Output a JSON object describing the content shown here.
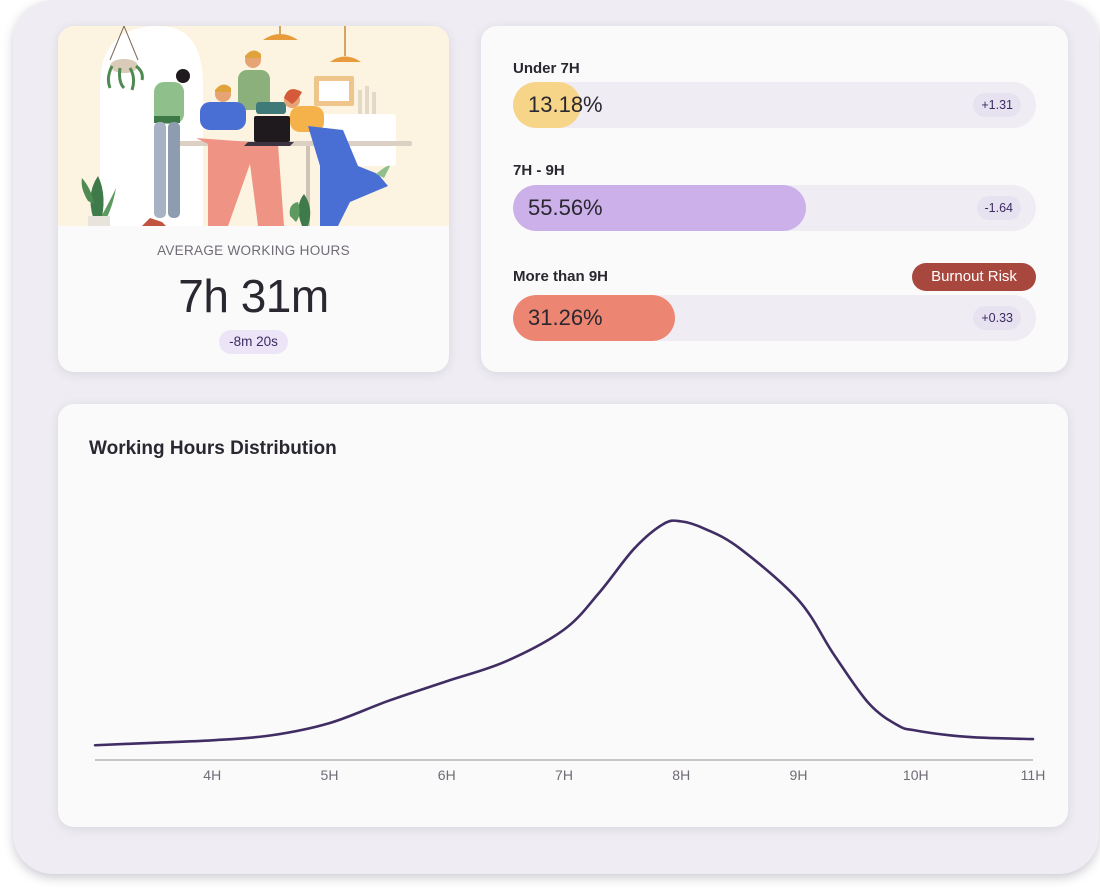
{
  "average": {
    "label": "AVERAGE WORKING HOURS",
    "value": "7h 31m",
    "delta": "-8m 20s"
  },
  "buckets": [
    {
      "label": "Under 7H",
      "percent": "13.18%",
      "fill_fraction": 0.13,
      "delta": "+1.31",
      "color": "#f7d588"
    },
    {
      "label": "7H - 9H",
      "percent": "55.56%",
      "fill_fraction": 0.56,
      "delta": "-1.64",
      "color": "#cbb0ea"
    },
    {
      "label": "More than 9H",
      "percent": "31.26%",
      "fill_fraction": 0.31,
      "delta": "+0.33",
      "color": "#ec8672",
      "badge": "Burnout Risk",
      "badge_color": "#a8473d"
    }
  ],
  "chart_data": {
    "type": "line",
    "title": "Working Hours Distribution",
    "xlabel": "",
    "ylabel": "",
    "x_tick_labels": [
      "4H",
      "5H",
      "6H",
      "7H",
      "8H",
      "9H",
      "10H",
      "11H"
    ],
    "xlim": [
      3,
      11
    ],
    "ylim": [
      0,
      1
    ],
    "grid": false,
    "color": "#3f2d63",
    "series": [
      {
        "x": [
          3.0,
          3.5,
          4.0,
          4.5,
          5.0,
          5.5,
          6.0,
          6.5,
          7.0,
          7.3,
          7.6,
          7.85,
          8.0,
          8.2,
          8.5,
          9.0,
          9.3,
          9.6,
          9.85,
          10.0,
          10.3,
          10.6,
          11.0
        ],
        "y": [
          0.06,
          0.07,
          0.08,
          0.1,
          0.15,
          0.24,
          0.32,
          0.4,
          0.53,
          0.68,
          0.86,
          0.96,
          0.97,
          0.94,
          0.86,
          0.65,
          0.43,
          0.23,
          0.14,
          0.12,
          0.1,
          0.09,
          0.085
        ]
      }
    ]
  }
}
